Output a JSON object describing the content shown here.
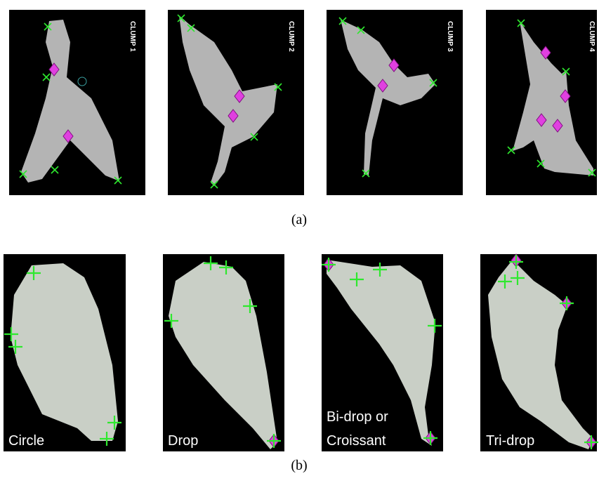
{
  "figure": {
    "panels_a": [
      {
        "label": "CLUMP 1"
      },
      {
        "label": "CLUMP 2"
      },
      {
        "label": "CLUMP 3"
      },
      {
        "label": "CLUMP 4"
      }
    ],
    "caption_a": "(a)",
    "panels_b": [
      {
        "lines": [
          "Circle"
        ]
      },
      {
        "lines": [
          "Drop"
        ]
      },
      {
        "lines": [
          "Bi-drop or",
          "Croissant"
        ]
      },
      {
        "lines": [
          "Tri-drop"
        ]
      }
    ],
    "caption_b": "(b)"
  }
}
